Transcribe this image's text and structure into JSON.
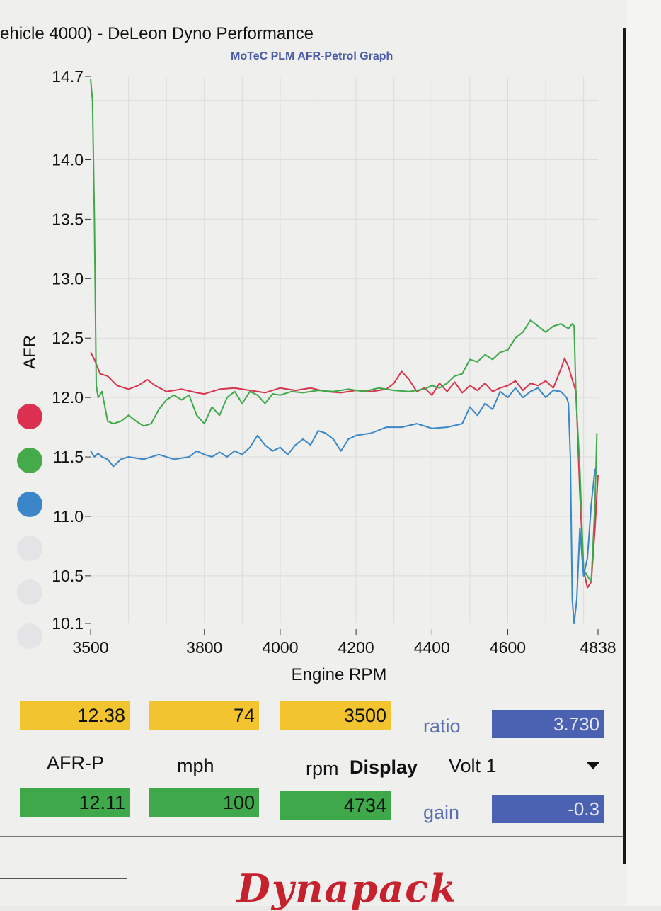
{
  "header": {
    "title": "ehicle 4000) - DeLeon Dyno Performance",
    "subtitle": "MoTeC PLM AFR-Petrol Graph"
  },
  "chart_data": {
    "type": "line",
    "title": "MoTeC PLM AFR-Petrol Graph",
    "xlabel": "Engine RPM",
    "ylabel": "AFR",
    "xlim": [
      3500,
      4838
    ],
    "ylim": [
      10.1,
      14.7
    ],
    "x_ticks": [
      "3500",
      "3800",
      "4000",
      "4200",
      "4400",
      "4600",
      "4838"
    ],
    "y_ticks": [
      "14.7",
      "14.0",
      "13.5",
      "13.0",
      "12.5",
      "12.0",
      "11.5",
      "11.0",
      "10.5",
      "10.1"
    ],
    "grid": true,
    "series": [
      {
        "color": "#d8344e",
        "points": [
          [
            3500,
            12.38
          ],
          [
            3510,
            12.32
          ],
          [
            3525,
            12.2
          ],
          [
            3545,
            12.18
          ],
          [
            3570,
            12.1
          ],
          [
            3600,
            12.07
          ],
          [
            3625,
            12.1
          ],
          [
            3650,
            12.15
          ],
          [
            3670,
            12.1
          ],
          [
            3700,
            12.05
          ],
          [
            3740,
            12.07
          ],
          [
            3780,
            12.04
          ],
          [
            3800,
            12.03
          ],
          [
            3840,
            12.07
          ],
          [
            3880,
            12.08
          ],
          [
            3920,
            12.06
          ],
          [
            3960,
            12.04
          ],
          [
            4000,
            12.08
          ],
          [
            4040,
            12.06
          ],
          [
            4080,
            12.08
          ],
          [
            4120,
            12.05
          ],
          [
            4160,
            12.04
          ],
          [
            4200,
            12.06
          ],
          [
            4240,
            12.05
          ],
          [
            4280,
            12.07
          ],
          [
            4300,
            12.12
          ],
          [
            4320,
            12.22
          ],
          [
            4340,
            12.15
          ],
          [
            4360,
            12.05
          ],
          [
            4380,
            12.08
          ],
          [
            4400,
            12.02
          ],
          [
            4420,
            12.12
          ],
          [
            4440,
            12.05
          ],
          [
            4460,
            12.13
          ],
          [
            4480,
            12.04
          ],
          [
            4500,
            12.1
          ],
          [
            4520,
            12.06
          ],
          [
            4540,
            12.12
          ],
          [
            4560,
            12.05
          ],
          [
            4580,
            12.08
          ],
          [
            4600,
            12.1
          ],
          [
            4620,
            12.14
          ],
          [
            4640,
            12.06
          ],
          [
            4660,
            12.12
          ],
          [
            4680,
            12.1
          ],
          [
            4700,
            12.14
          ],
          [
            4720,
            12.08
          ],
          [
            4740,
            12.24
          ],
          [
            4750,
            12.33
          ],
          [
            4760,
            12.26
          ],
          [
            4770,
            12.15
          ],
          [
            4780,
            12.05
          ],
          [
            4790,
            11.2
          ],
          [
            4800,
            10.55
          ],
          [
            4810,
            10.4
          ],
          [
            4820,
            10.45
          ],
          [
            4830,
            10.9
          ],
          [
            4838,
            11.35
          ]
        ]
      },
      {
        "color": "#3ea84a",
        "points": [
          [
            3500,
            14.68
          ],
          [
            3505,
            14.5
          ],
          [
            3510,
            13.5
          ],
          [
            3515,
            12.1
          ],
          [
            3520,
            12.0
          ],
          [
            3530,
            12.05
          ],
          [
            3545,
            11.8
          ],
          [
            3560,
            11.78
          ],
          [
            3580,
            11.8
          ],
          [
            3600,
            11.85
          ],
          [
            3620,
            11.8
          ],
          [
            3640,
            11.76
          ],
          [
            3660,
            11.78
          ],
          [
            3680,
            11.9
          ],
          [
            3700,
            11.98
          ],
          [
            3720,
            12.02
          ],
          [
            3740,
            11.98
          ],
          [
            3760,
            12.02
          ],
          [
            3780,
            11.85
          ],
          [
            3800,
            11.78
          ],
          [
            3820,
            11.92
          ],
          [
            3840,
            11.85
          ],
          [
            3860,
            12.0
          ],
          [
            3880,
            12.05
          ],
          [
            3900,
            11.95
          ],
          [
            3920,
            12.05
          ],
          [
            3940,
            12.02
          ],
          [
            3960,
            11.95
          ],
          [
            3980,
            12.03
          ],
          [
            4000,
            12.02
          ],
          [
            4030,
            12.05
          ],
          [
            4060,
            12.04
          ],
          [
            4100,
            12.06
          ],
          [
            4140,
            12.05
          ],
          [
            4180,
            12.07
          ],
          [
            4220,
            12.05
          ],
          [
            4260,
            12.08
          ],
          [
            4300,
            12.06
          ],
          [
            4340,
            12.05
          ],
          [
            4380,
            12.07
          ],
          [
            4400,
            12.1
          ],
          [
            4420,
            12.08
          ],
          [
            4440,
            12.12
          ],
          [
            4460,
            12.18
          ],
          [
            4480,
            12.2
          ],
          [
            4500,
            12.32
          ],
          [
            4520,
            12.3
          ],
          [
            4540,
            12.36
          ],
          [
            4560,
            12.32
          ],
          [
            4580,
            12.38
          ],
          [
            4600,
            12.4
          ],
          [
            4620,
            12.5
          ],
          [
            4640,
            12.55
          ],
          [
            4660,
            12.65
          ],
          [
            4680,
            12.6
          ],
          [
            4700,
            12.55
          ],
          [
            4720,
            12.6
          ],
          [
            4740,
            12.62
          ],
          [
            4760,
            12.58
          ],
          [
            4770,
            12.62
          ],
          [
            4775,
            12.6
          ],
          [
            4780,
            12.0
          ],
          [
            4790,
            11.4
          ],
          [
            4800,
            10.55
          ],
          [
            4810,
            10.5
          ],
          [
            4820,
            10.45
          ],
          [
            4830,
            11.1
          ],
          [
            4835,
            11.7
          ]
        ]
      },
      {
        "color": "#3a86c8",
        "points": [
          [
            3500,
            11.55
          ],
          [
            3510,
            11.5
          ],
          [
            3520,
            11.53
          ],
          [
            3530,
            11.5
          ],
          [
            3545,
            11.48
          ],
          [
            3560,
            11.42
          ],
          [
            3580,
            11.48
          ],
          [
            3600,
            11.5
          ],
          [
            3640,
            11.48
          ],
          [
            3680,
            11.52
          ],
          [
            3720,
            11.48
          ],
          [
            3760,
            11.5
          ],
          [
            3780,
            11.55
          ],
          [
            3800,
            11.52
          ],
          [
            3820,
            11.5
          ],
          [
            3840,
            11.54
          ],
          [
            3860,
            11.5
          ],
          [
            3880,
            11.55
          ],
          [
            3900,
            11.52
          ],
          [
            3920,
            11.58
          ],
          [
            3940,
            11.68
          ],
          [
            3960,
            11.6
          ],
          [
            3980,
            11.55
          ],
          [
            4000,
            11.58
          ],
          [
            4020,
            11.52
          ],
          [
            4040,
            11.6
          ],
          [
            4060,
            11.65
          ],
          [
            4080,
            11.6
          ],
          [
            4100,
            11.72
          ],
          [
            4120,
            11.7
          ],
          [
            4140,
            11.65
          ],
          [
            4160,
            11.55
          ],
          [
            4180,
            11.65
          ],
          [
            4200,
            11.68
          ],
          [
            4240,
            11.7
          ],
          [
            4280,
            11.75
          ],
          [
            4320,
            11.75
          ],
          [
            4360,
            11.78
          ],
          [
            4400,
            11.74
          ],
          [
            4440,
            11.75
          ],
          [
            4480,
            11.78
          ],
          [
            4500,
            11.92
          ],
          [
            4520,
            11.85
          ],
          [
            4540,
            11.95
          ],
          [
            4560,
            11.9
          ],
          [
            4580,
            12.05
          ],
          [
            4600,
            12.0
          ],
          [
            4620,
            12.08
          ],
          [
            4640,
            12.0
          ],
          [
            4660,
            12.05
          ],
          [
            4680,
            12.08
          ],
          [
            4700,
            12.0
          ],
          [
            4720,
            12.06
          ],
          [
            4740,
            12.05
          ],
          [
            4755,
            12.0
          ],
          [
            4760,
            11.95
          ],
          [
            4765,
            11.5
          ],
          [
            4770,
            10.3
          ],
          [
            4775,
            10.1
          ],
          [
            4782,
            10.3
          ],
          [
            4790,
            10.9
          ],
          [
            4800,
            10.5
          ],
          [
            4810,
            10.65
          ],
          [
            4820,
            11.1
          ],
          [
            4830,
            11.4
          ]
        ]
      }
    ]
  },
  "readouts": {
    "row1": {
      "afr": "12.38",
      "mph": "74",
      "rpm": "3500",
      "ratio_label": "ratio",
      "ratio_value": "3.730"
    },
    "labels": {
      "afr": "AFR-P",
      "mph": "mph",
      "rpm": "rpm",
      "display": "Display",
      "display_value": "Volt 1"
    },
    "row2": {
      "afr": "12.11",
      "mph": "100",
      "rpm": "4734",
      "gain_label": "gain",
      "gain_value": "-0.3"
    }
  },
  "legend_dots": [
    "#dc3050",
    "#45ab4a",
    "#3a86c8"
  ],
  "brand": "Dynapack"
}
